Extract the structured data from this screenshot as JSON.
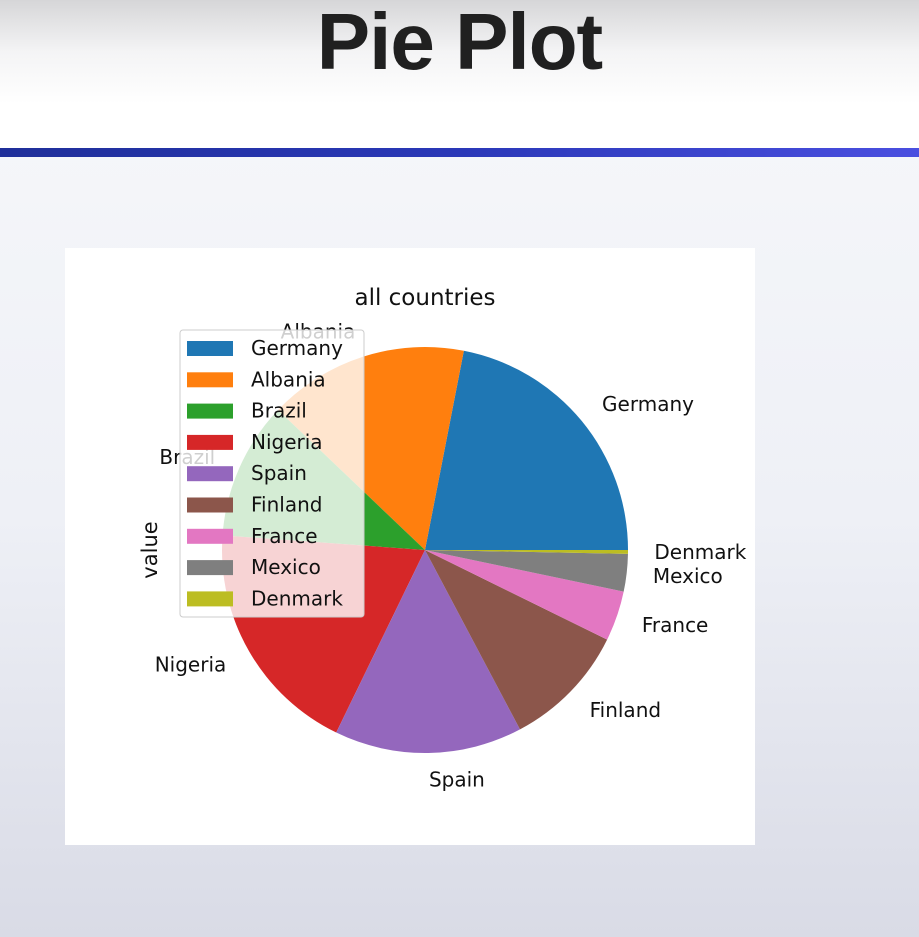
{
  "slide": {
    "title": "Pie Plot"
  },
  "chart_data": {
    "type": "pie",
    "title": "all countries",
    "ylabel": "value",
    "labels": [
      "Germany",
      "Albania",
      "Brazil",
      "Nigeria",
      "Spain",
      "Finland",
      "France",
      "Mexico",
      "Denmark"
    ],
    "values": [
      22,
      16,
      11,
      19,
      15,
      10,
      4,
      3,
      0.3
    ],
    "colors": [
      "#1f77b4",
      "#ff7f0e",
      "#2ca02c",
      "#d62728",
      "#9467bd",
      "#8c564b",
      "#e377c2",
      "#7f7f7f",
      "#bcbd22"
    ],
    "start_angle_deg": 0,
    "direction": "counterclockwise",
    "legend": {
      "position": "upper-left",
      "entries": [
        "Germany",
        "Albania",
        "Brazil",
        "Nigeria",
        "Spain",
        "Finland",
        "France",
        "Mexico",
        "Denmark"
      ]
    }
  }
}
